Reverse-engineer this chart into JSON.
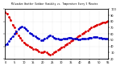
{
  "title": "Milwaukee Weather Outdoor Humidity vs. Temperature Every 5 Minutes",
  "bg_color": "#ffffff",
  "grid_color": "#cccccc",
  "plot_bg": "#ffffff",
  "fig_bg": "#ffffff",
  "text_color": "#000000",
  "tick_color": "#000000",
  "red_color": "#dd0000",
  "blue_color": "#0000cc",
  "red_y": [
    95,
    92,
    88,
    82,
    75,
    70,
    62,
    58,
    54,
    50,
    46,
    44,
    42,
    40,
    38,
    36,
    35,
    34,
    32,
    30,
    30,
    32,
    30,
    28,
    26,
    28,
    30,
    32,
    34,
    36,
    38,
    40,
    42,
    44,
    46,
    48,
    50,
    52,
    54,
    56,
    58,
    60,
    62,
    64,
    65,
    68,
    70,
    72,
    73,
    75,
    76,
    77,
    78,
    79,
    80,
    81
  ],
  "blue_y": [
    42,
    44,
    48,
    52,
    56,
    60,
    64,
    68,
    70,
    72,
    70,
    68,
    65,
    62,
    60,
    58,
    56,
    54,
    52,
    50,
    50,
    52,
    54,
    56,
    58,
    56,
    54,
    53,
    52,
    51,
    51,
    52,
    53,
    53,
    54,
    54,
    53,
    52,
    52,
    51,
    51,
    52,
    52,
    53,
    53,
    54,
    54,
    55,
    55,
    55,
    54,
    54,
    53,
    53,
    52,
    52
  ],
  "xlim": [
    0,
    55
  ],
  "ylim": [
    20,
    100
  ],
  "markersize": 2.0,
  "linewidth": 0.9,
  "dash_pattern": [
    4,
    3
  ]
}
